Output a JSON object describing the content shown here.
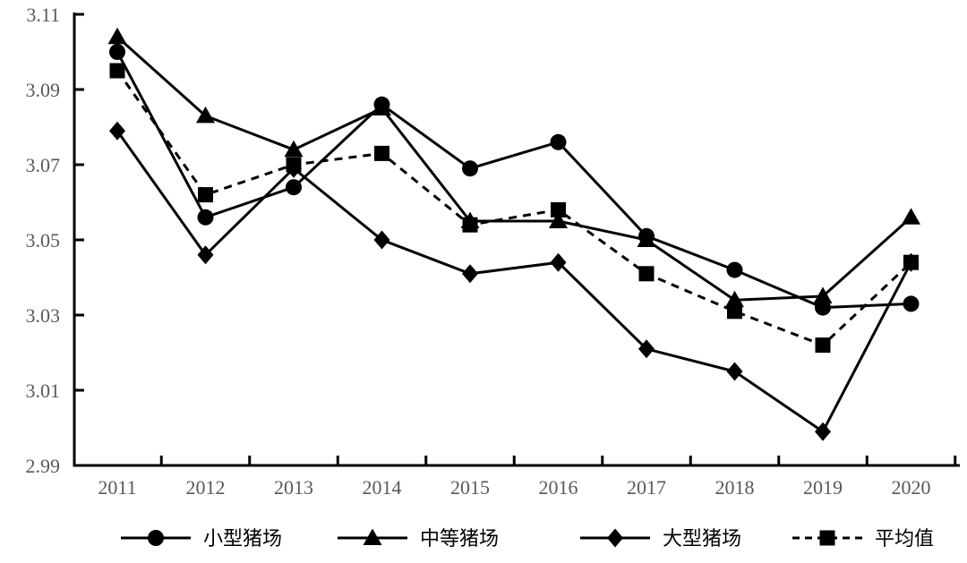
{
  "chart_data": {
    "type": "line",
    "title": "",
    "xlabel": "",
    "ylabel": "",
    "categories": [
      "2011",
      "2012",
      "2013",
      "2014",
      "2015",
      "2016",
      "2017",
      "2018",
      "2019",
      "2020"
    ],
    "series": [
      {
        "name": "小型猪场",
        "marker": "circle",
        "marker_name": "circle-marker",
        "line_style": "solid",
        "values": [
          3.1,
          3.056,
          3.064,
          3.086,
          3.069,
          3.076,
          3.051,
          3.042,
          3.032,
          3.033
        ]
      },
      {
        "name": "中等猪场",
        "marker": "triangle",
        "marker_name": "triangle-marker",
        "line_style": "solid",
        "values": [
          3.104,
          3.083,
          3.074,
          3.085,
          3.055,
          3.055,
          3.05,
          3.034,
          3.035,
          3.056
        ]
      },
      {
        "name": "大型猪场",
        "marker": "diamond",
        "marker_name": "diamond-marker",
        "line_style": "solid",
        "values": [
          3.079,
          3.046,
          3.069,
          3.05,
          3.041,
          3.044,
          3.021,
          3.015,
          2.999,
          3.044
        ]
      },
      {
        "name": "平均值",
        "marker": "square",
        "marker_name": "square-marker",
        "line_style": "dashed",
        "values": [
          3.095,
          3.062,
          3.07,
          3.073,
          3.054,
          3.058,
          3.041,
          3.031,
          3.022,
          3.044
        ]
      }
    ],
    "ylim": [
      2.99,
      3.11
    ],
    "ytick_step": 0.02,
    "ytick_labels": [
      "3.11",
      "3.09",
      "3.07",
      "3.05",
      "3.03",
      "3.01",
      "2.99"
    ],
    "grid": false,
    "legend_position": "bottom",
    "colors": {
      "series_color": "#000000",
      "axis_color": "#000000",
      "tick_label_color": "#595959",
      "background": "#ffffff"
    }
  }
}
